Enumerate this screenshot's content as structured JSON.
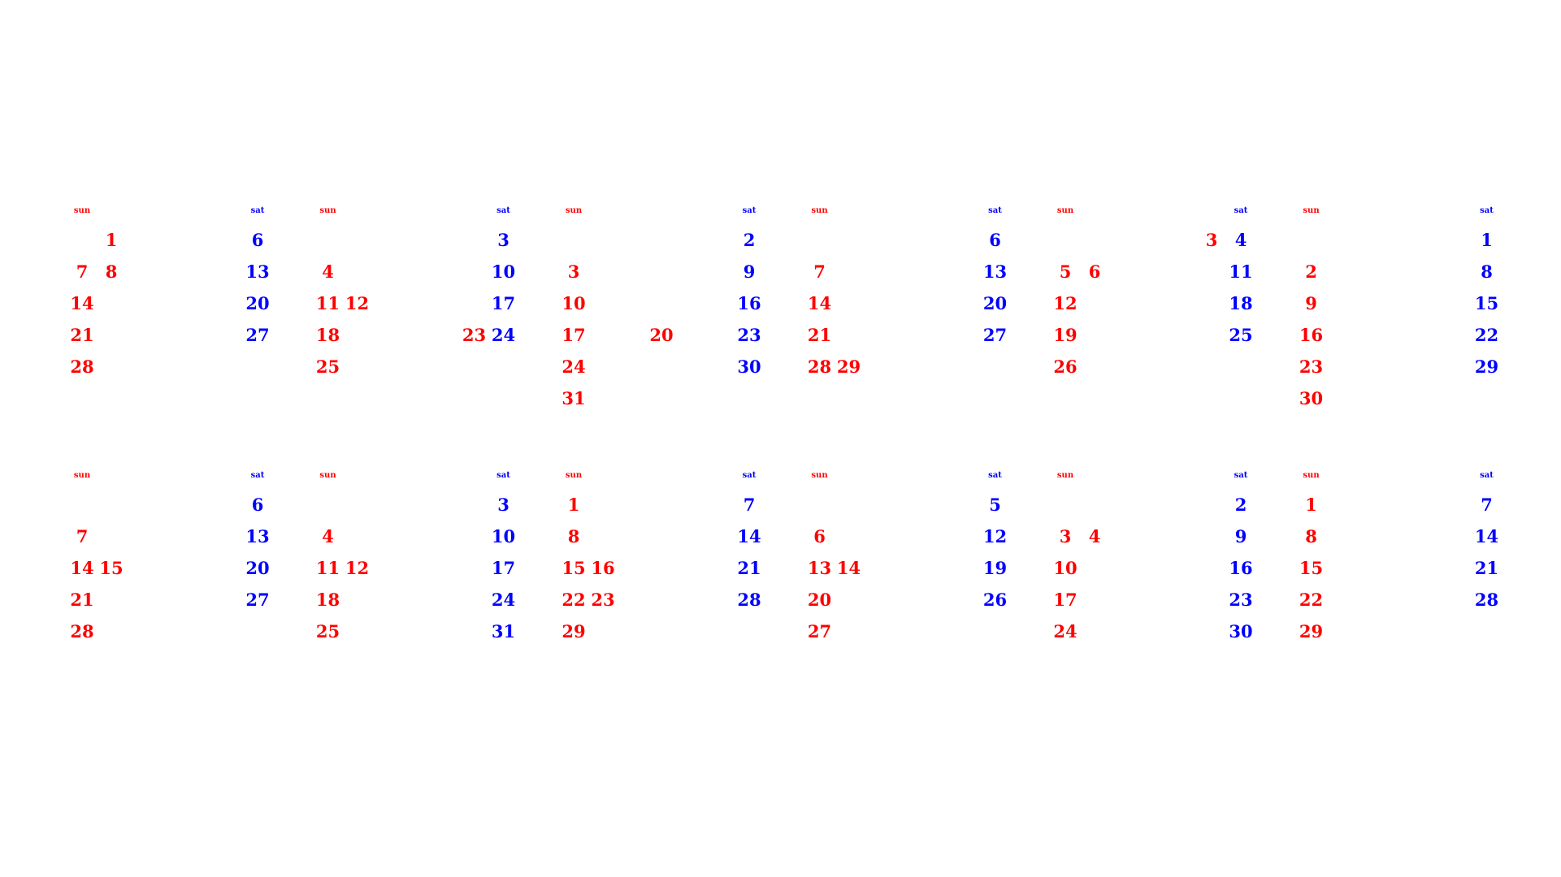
{
  "colors": {
    "sunday_red": "#ff0000",
    "saturday_blue": "#0000ff"
  },
  "labels": {
    "sun": "sun",
    "sat": "sat"
  },
  "rows": [
    {
      "months": [
        {
          "sun_dates": [
            "",
            "7",
            "14",
            "21",
            "28"
          ],
          "mon_dates": [
            "1",
            "8",
            "",
            "",
            ""
          ],
          "tue_dates": [],
          "wed_dates": [],
          "thu_dates": [],
          "fri_dates": [],
          "sat_dates": [
            "6",
            "13",
            "20",
            "27"
          ]
        },
        {
          "sun_dates": [
            "",
            "4",
            "11",
            "18",
            "25"
          ],
          "mon_dates": [
            "",
            "",
            "12",
            "",
            ""
          ],
          "tue_dates": [],
          "wed_dates": [],
          "thu_dates": [],
          "fri_dates": [
            "",
            "",
            "",
            "23"
          ],
          "sat_dates": [
            "3",
            "10",
            "17",
            "24"
          ]
        },
        {
          "sun_dates": [
            "",
            "3",
            "10",
            "17",
            "24",
            "31"
          ],
          "mon_dates": [],
          "tue_dates": [],
          "wed_dates": [],
          "thu_dates": [],
          "fri_dates": [],
          "sat_dates": [
            "2",
            "9",
            "16",
            "23",
            "30"
          ],
          "extra": {
            "col": 3,
            "row": 3,
            "value": "20"
          }
        },
        {
          "sun_dates": [
            "",
            "7",
            "14",
            "21",
            "28"
          ],
          "mon_dates": [
            "",
            "",
            "",
            "",
            "29"
          ],
          "tue_dates": [],
          "wed_dates": [],
          "thu_dates": [],
          "fri_dates": [],
          "sat_dates": [
            "6",
            "13",
            "20",
            "27"
          ]
        },
        {
          "sun_dates": [
            "",
            "5",
            "12",
            "19",
            "26"
          ],
          "mon_dates": [
            "",
            "6",
            "",
            "",
            ""
          ],
          "tue_dates": [],
          "wed_dates": [],
          "thu_dates": [],
          "fri_dates": [
            "3"
          ],
          "sat_dates": [
            "4",
            "11",
            "18",
            "25"
          ]
        },
        {
          "sun_dates": [
            "",
            "2",
            "9",
            "16",
            "23",
            "30"
          ],
          "mon_dates": [],
          "tue_dates": [],
          "wed_dates": [],
          "thu_dates": [],
          "fri_dates": [],
          "sat_dates": [
            "1",
            "8",
            "15",
            "22",
            "29"
          ]
        }
      ]
    },
    {
      "months": [
        {
          "sun_dates": [
            "",
            "7",
            "14",
            "21",
            "28"
          ],
          "mon_dates": [
            "",
            "",
            "15",
            "",
            ""
          ],
          "tue_dates": [],
          "wed_dates": [],
          "thu_dates": [],
          "fri_dates": [],
          "sat_dates": [
            "6",
            "13",
            "20",
            "27"
          ]
        },
        {
          "sun_dates": [
            "",
            "4",
            "11",
            "18",
            "25"
          ],
          "mon_dates": [
            "",
            "",
            "12",
            "",
            ""
          ],
          "tue_dates": [],
          "wed_dates": [],
          "thu_dates": [],
          "fri_dates": [],
          "sat_dates": [
            "3",
            "10",
            "17",
            "24",
            "31"
          ]
        },
        {
          "sun_dates": [
            "1",
            "8",
            "15",
            "22",
            "29"
          ],
          "mon_dates": [
            "",
            "",
            "16",
            "23",
            ""
          ],
          "tue_dates": [],
          "wed_dates": [],
          "thu_dates": [],
          "fri_dates": [],
          "sat_dates": [
            "7",
            "14",
            "21",
            "28"
          ]
        },
        {
          "sun_dates": [
            "",
            "6",
            "13",
            "20",
            "27"
          ],
          "mon_dates": [
            "",
            "",
            "14",
            "",
            ""
          ],
          "tue_dates": [],
          "wed_dates": [],
          "thu_dates": [],
          "fri_dates": [],
          "sat_dates": [
            "5",
            "12",
            "19",
            "26"
          ]
        },
        {
          "sun_dates": [
            "",
            "3",
            "10",
            "17",
            "24"
          ],
          "mon_dates": [
            "",
            "4",
            "",
            "",
            ""
          ],
          "tue_dates": [],
          "wed_dates": [],
          "thu_dates": [],
          "fri_dates": [],
          "sat_dates": [
            "2",
            "9",
            "16",
            "23",
            "30"
          ]
        },
        {
          "sun_dates": [
            "1",
            "8",
            "15",
            "22",
            "29"
          ],
          "mon_dates": [],
          "tue_dates": [],
          "wed_dates": [],
          "thu_dates": [],
          "fri_dates": [],
          "sat_dates": [
            "7",
            "14",
            "21",
            "28"
          ]
        }
      ]
    }
  ]
}
